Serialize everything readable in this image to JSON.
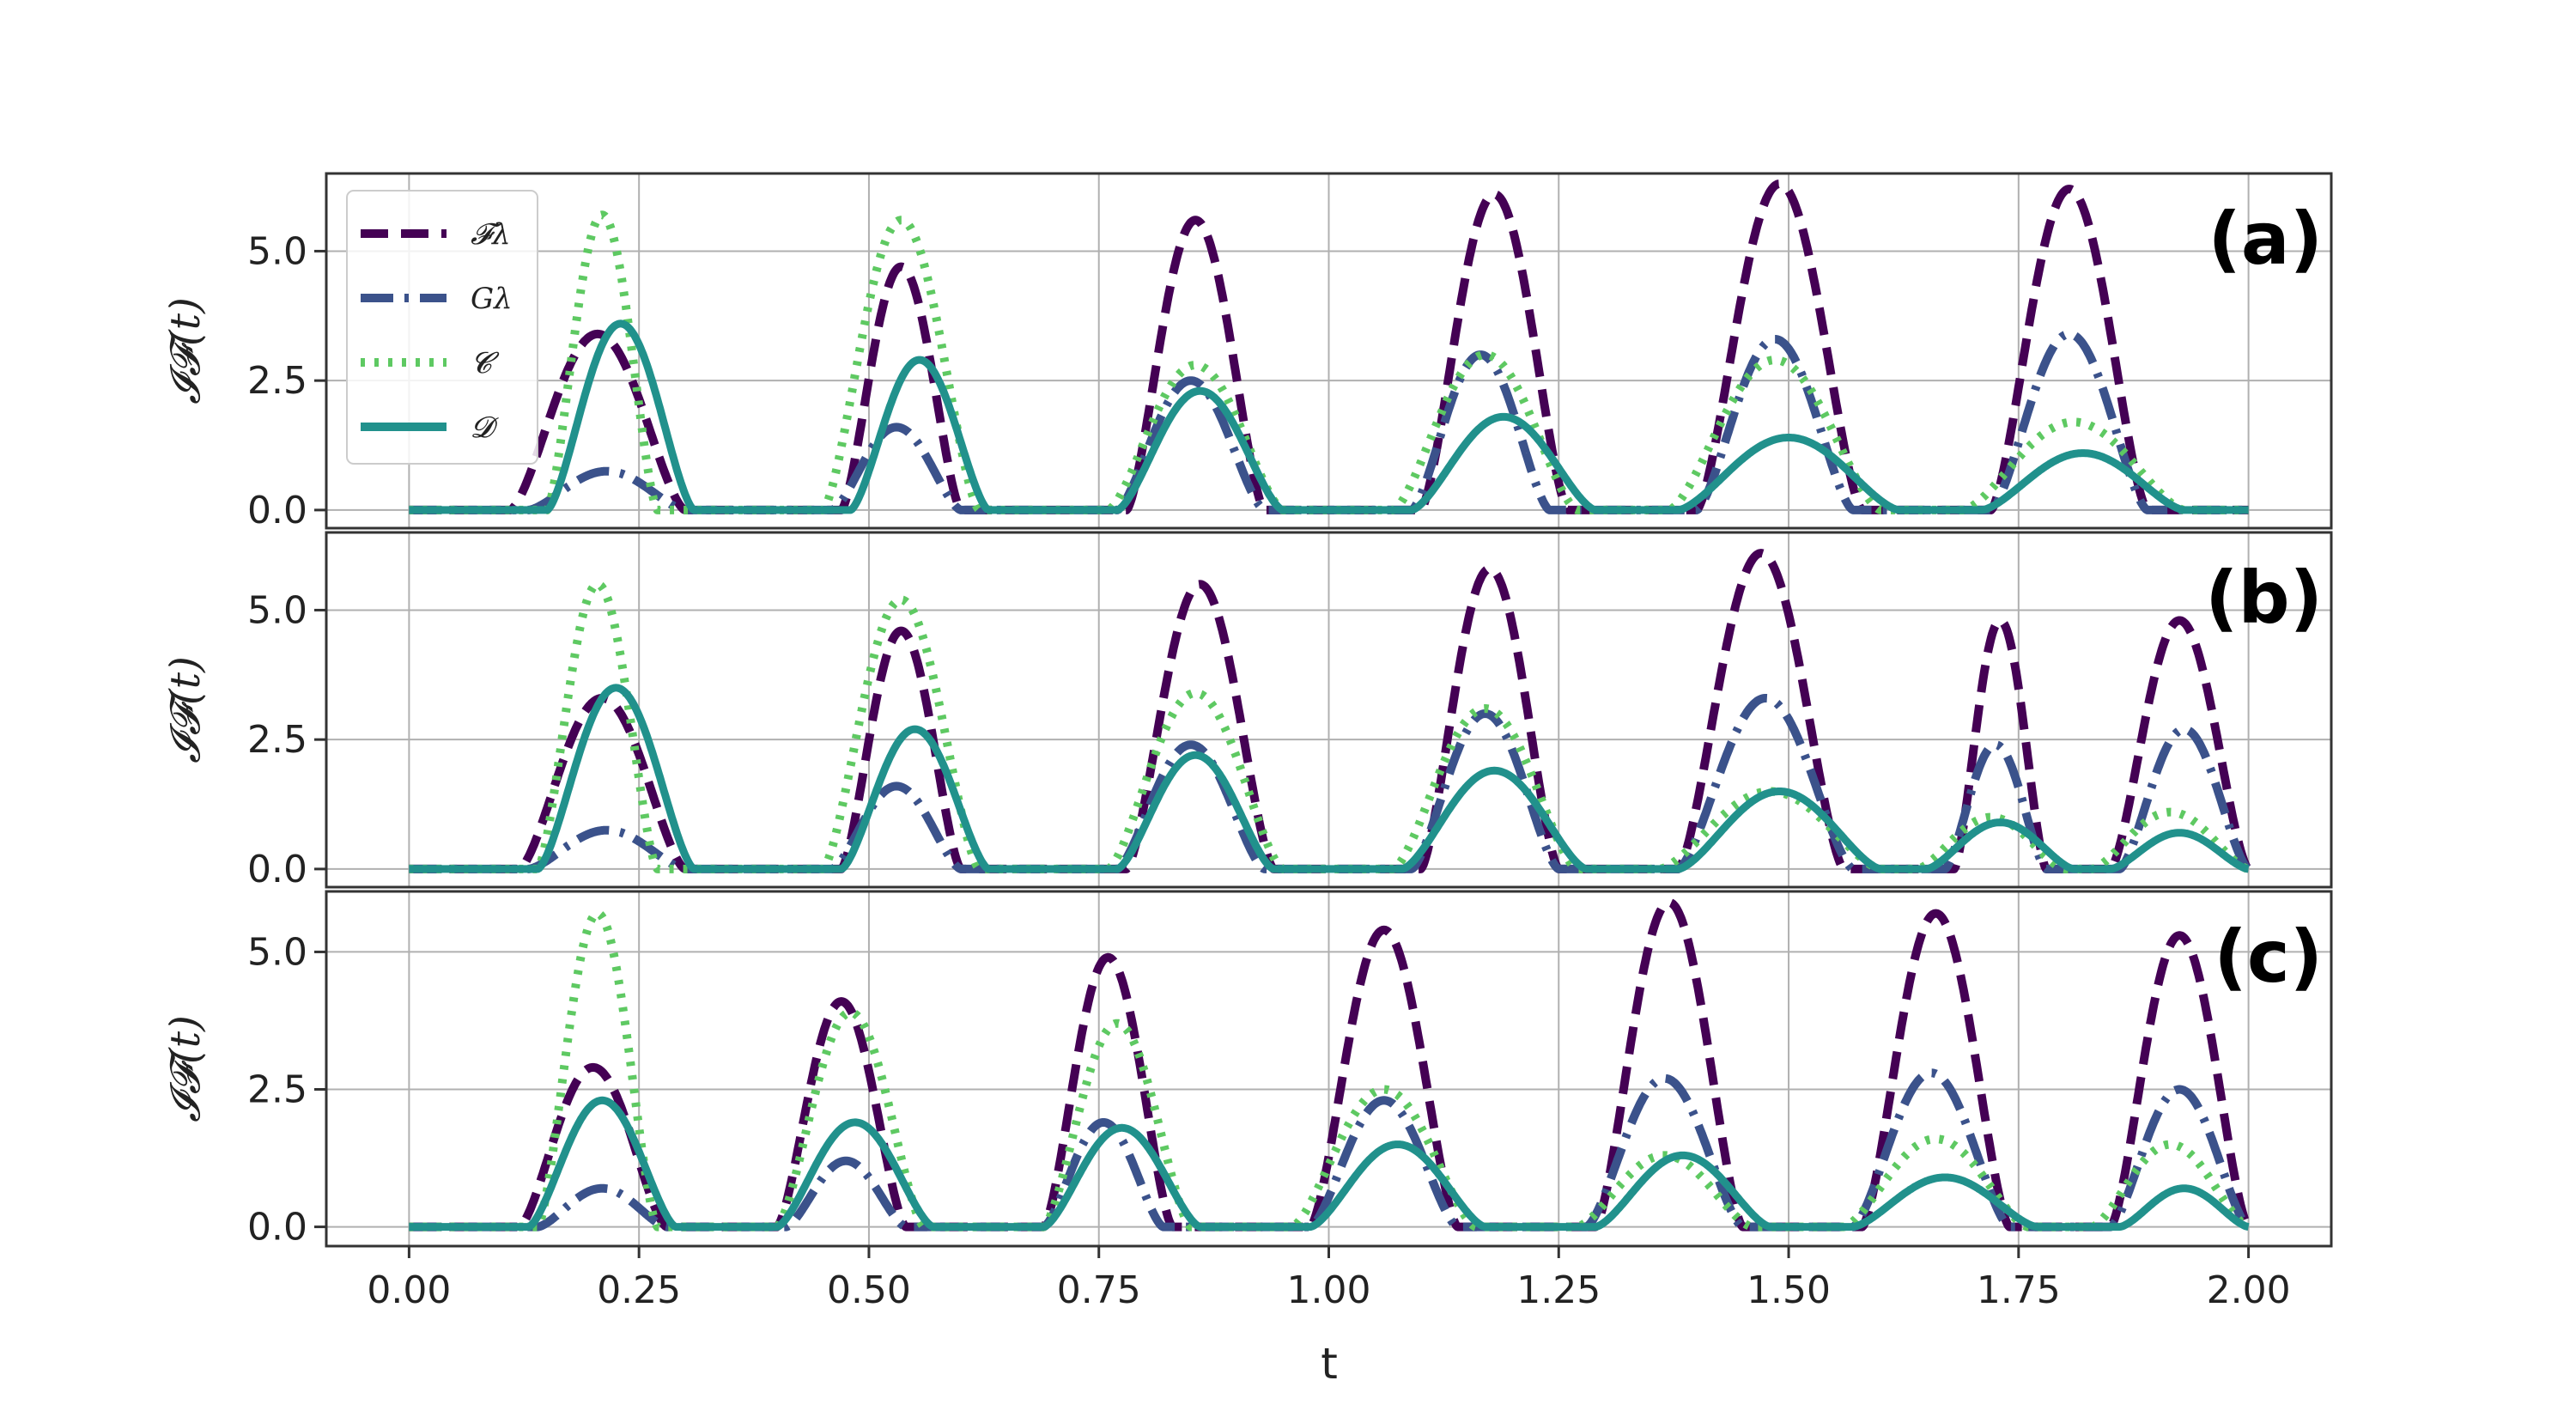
{
  "chart_data": {
    "type": "line",
    "xlabel": "t",
    "ylabel": "𝓘𝓕(t)",
    "xlim": [
      -0.09,
      2.09
    ],
    "xticks": [
      "0.00",
      "0.25",
      "0.50",
      "0.75",
      "1.00",
      "1.25",
      "1.50",
      "1.75",
      "2.00"
    ],
    "yticks": [
      "0.0",
      "2.5",
      "5.0"
    ],
    "grid": true,
    "legend": {
      "placement": "top-left",
      "panel": 0,
      "entries": [
        {
          "label": "𝓕λ",
          "style": "dashed",
          "color": "#440154"
        },
        {
          "label": "Gλ",
          "style": "dashdot",
          "color": "#3b528b"
        },
        {
          "label": "𝓒",
          "style": "dotted",
          "color": "#5ec962"
        },
        {
          "label": "𝓓",
          "style": "solid",
          "color": "#21918c"
        }
      ]
    },
    "series_colors": {
      "F": "#440154",
      "G": "#3b528b",
      "C": "#5ec962",
      "D": "#21918c"
    },
    "panels": [
      {
        "label": "(a)",
        "ylim": [
          -0.35,
          6.5
        ],
        "pulses": [
          {
            "F": [
              0.11,
              0.3,
              3.4
            ],
            "G": [
              0.13,
              0.3,
              0.75
            ],
            "C": [
              0.15,
              0.27,
              5.7
            ],
            "D": [
              0.15,
              0.31,
              3.6
            ]
          },
          {
            "F": [
              0.47,
              0.6,
              4.7
            ],
            "G": [
              0.46,
              0.6,
              1.6
            ],
            "C": [
              0.45,
              0.62,
              5.6
            ],
            "D": [
              0.48,
              0.63,
              2.9
            ]
          },
          {
            "F": [
              0.78,
              0.93,
              5.6
            ],
            "G": [
              0.77,
              0.93,
              2.5
            ],
            "C": [
              0.76,
              0.95,
              2.8
            ],
            "D": [
              0.77,
              0.95,
              2.3
            ]
          },
          {
            "F": [
              1.1,
              1.26,
              6.1
            ],
            "G": [
              1.09,
              1.24,
              3.0
            ],
            "C": [
              1.07,
              1.27,
              3.0
            ],
            "D": [
              1.09,
              1.29,
              1.8
            ]
          },
          {
            "F": [
              1.4,
              1.58,
              6.3
            ],
            "G": [
              1.4,
              1.57,
              3.3
            ],
            "C": [
              1.37,
              1.6,
              2.9
            ],
            "D": [
              1.38,
              1.62,
              1.4
            ]
          },
          {
            "F": [
              1.72,
              1.89,
              6.2
            ],
            "G": [
              1.72,
              1.89,
              3.4
            ],
            "C": [
              1.69,
              1.93,
              1.7
            ],
            "D": [
              1.71,
              1.93,
              1.1
            ]
          }
        ]
      },
      {
        "label": "(b)",
        "ylim": [
          -0.35,
          6.5
        ],
        "pulses": [
          {
            "F": [
              0.12,
              0.3,
              3.3
            ],
            "G": [
              0.13,
              0.3,
              0.75
            ],
            "C": [
              0.14,
              0.27,
              5.5
            ],
            "D": [
              0.14,
              0.31,
              3.5
            ]
          },
          {
            "F": [
              0.47,
              0.6,
              4.6
            ],
            "G": [
              0.46,
              0.6,
              1.6
            ],
            "C": [
              0.45,
              0.62,
              5.2
            ],
            "D": [
              0.47,
              0.63,
              2.7
            ]
          },
          {
            "F": [
              0.78,
              0.94,
              5.5
            ],
            "G": [
              0.77,
              0.93,
              2.4
            ],
            "C": [
              0.76,
              0.95,
              3.4
            ],
            "D": [
              0.77,
              0.94,
              2.2
            ]
          },
          {
            "F": [
              1.1,
              1.25,
              5.8
            ],
            "G": [
              1.09,
              1.25,
              3.0
            ],
            "C": [
              1.07,
              1.27,
              3.1
            ],
            "D": [
              1.08,
              1.28,
              1.9
            ]
          },
          {
            "F": [
              1.38,
              1.56,
              6.1
            ],
            "G": [
              1.38,
              1.57,
              3.3
            ],
            "C": [
              1.36,
              1.6,
              1.5
            ],
            "D": [
              1.38,
              1.6,
              1.5
            ]
          },
          {
            "F": [
              1.68,
              1.78,
              4.8
            ],
            "G": [
              1.67,
              1.78,
              2.4
            ],
            "C": [
              1.64,
              1.8,
              1.0
            ],
            "D": [
              1.65,
              1.81,
              0.9
            ]
          },
          {
            "F": [
              1.85,
              2.0,
              4.8
            ],
            "G": [
              1.86,
              2.0,
              2.7
            ],
            "C": [
              1.83,
              2.0,
              1.1
            ],
            "D": [
              1.85,
              2.0,
              0.7
            ]
          }
        ]
      },
      {
        "label": "(c)",
        "ylim": [
          -0.35,
          6.1
        ],
        "pulses": [
          {
            "F": [
              0.12,
              0.28,
              2.9
            ],
            "G": [
              0.14,
              0.28,
              0.7
            ],
            "C": [
              0.14,
              0.27,
              5.7
            ],
            "D": [
              0.13,
              0.29,
              2.3
            ]
          },
          {
            "F": [
              0.4,
              0.54,
              4.1
            ],
            "G": [
              0.41,
              0.54,
              1.2
            ],
            "C": [
              0.4,
              0.56,
              3.9
            ],
            "D": [
              0.4,
              0.57,
              1.9
            ]
          },
          {
            "F": [
              0.69,
              0.83,
              4.9
            ],
            "G": [
              0.69,
              0.82,
              1.9
            ],
            "C": [
              0.69,
              0.85,
              3.7
            ],
            "D": [
              0.69,
              0.86,
              1.8
            ]
          },
          {
            "F": [
              0.98,
              1.14,
              5.4
            ],
            "G": [
              0.98,
              1.14,
              2.3
            ],
            "C": [
              0.96,
              1.16,
              2.5
            ],
            "D": [
              0.98,
              1.17,
              1.5
            ]
          },
          {
            "F": [
              1.29,
              1.45,
              5.9
            ],
            "G": [
              1.28,
              1.45,
              2.7
            ],
            "C": [
              1.27,
              1.46,
              1.3
            ],
            "D": [
              1.29,
              1.48,
              1.3
            ]
          },
          {
            "F": [
              1.58,
              1.74,
              5.7
            ],
            "G": [
              1.57,
              1.74,
              2.8
            ],
            "C": [
              1.56,
              1.76,
              1.6
            ],
            "D": [
              1.57,
              1.77,
              0.9
            ]
          },
          {
            "F": [
              1.85,
              2.0,
              5.3
            ],
            "G": [
              1.85,
              2.0,
              2.5
            ],
            "C": [
              1.83,
              2.0,
              1.5
            ],
            "D": [
              1.86,
              2.0,
              0.7
            ]
          }
        ]
      }
    ]
  }
}
